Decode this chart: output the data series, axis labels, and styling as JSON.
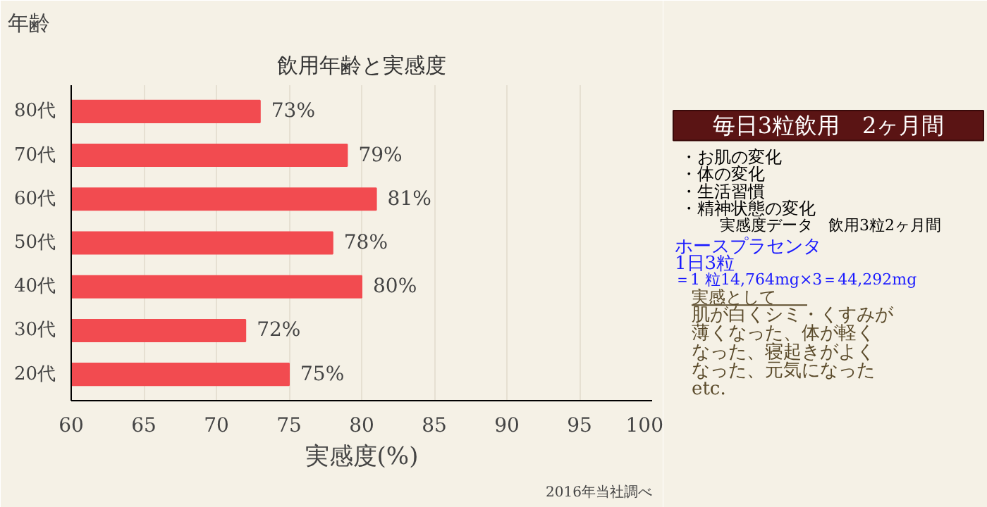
{
  "chart_data": {
    "type": "bar",
    "orientation": "horizontal",
    "title": "飲用年齢と実感度",
    "ylabel": "年齢",
    "xlabel": "実感度(%)",
    "categories": [
      "80代",
      "70代",
      "60代",
      "50代",
      "40代",
      "30代",
      "20代"
    ],
    "values": [
      73,
      79,
      81,
      78,
      80,
      72,
      75
    ],
    "value_labels": [
      "73%",
      "79%",
      "81%",
      "78%",
      "80%",
      "72%",
      "75%"
    ],
    "color": "#f24b50",
    "xlim": [
      60,
      100
    ],
    "xticks": [
      60,
      65,
      70,
      75,
      80,
      85,
      90,
      95,
      100
    ],
    "grid": "x",
    "annotations": [
      "2016年当社調べ",
      "毎日3粒飲用　2ヶ月間",
      "・お肌の変化",
      "・体の変化",
      "・生活習慣",
      "・精神状態の変化",
      "実感度データ　飲用3粒2ヶ月間",
      "ホースプラセンタ",
      "1日3粒",
      "＝1 粒14,764mg×3＝44,292mg",
      "実感として",
      "肌が白くシミ・くすみが",
      "薄くなった、体が軽く",
      "なった、寝起きがよく",
      "なった、元気になった",
      "etc."
    ]
  }
}
